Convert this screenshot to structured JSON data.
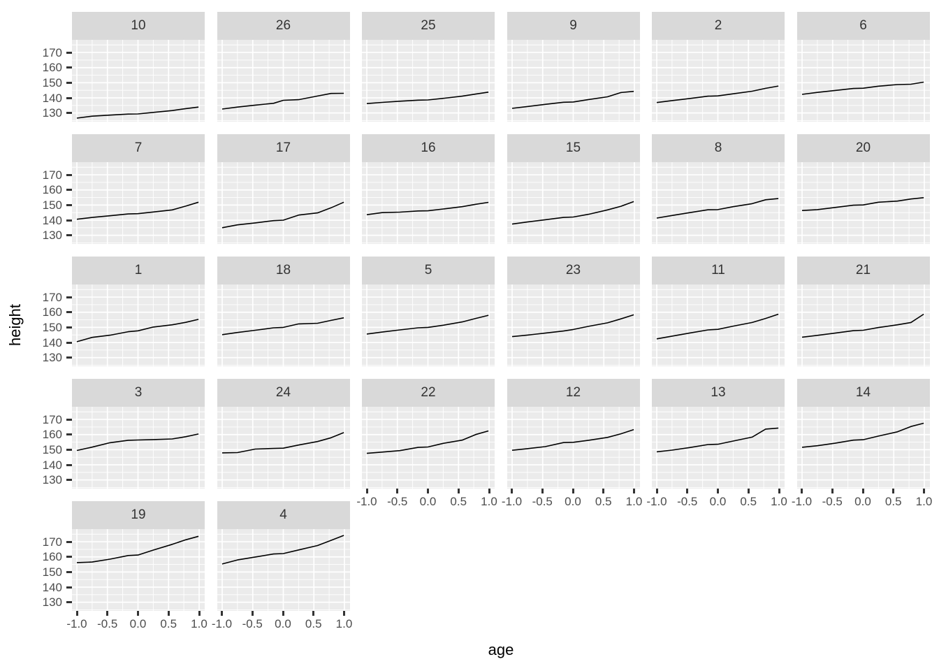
{
  "chart_data": {
    "type": "line",
    "title": "",
    "xlabel": "age",
    "ylabel": "height",
    "x_tick_labels": [
      "-1.0",
      "-0.5",
      "0.0",
      "0.5",
      "1.0"
    ],
    "x_tick_values": [
      -1.0,
      -0.5,
      0.0,
      0.5,
      1.0
    ],
    "y_tick_labels": [
      "170",
      "160",
      "150",
      "140",
      "130"
    ],
    "y_tick_values": [
      170,
      160,
      150,
      140,
      130
    ],
    "x_range": [
      -1.09,
      1.09
    ],
    "y_range": [
      124.3,
      178.35
    ],
    "grid": "on",
    "legend_position": "none",
    "x": [
      -1.0,
      -0.75,
      -0.46,
      -0.16,
      0.0,
      0.25,
      0.56,
      0.78,
      0.99
    ],
    "facets": [
      {
        "label": "10",
        "values": [
          126.6,
          127.9,
          128.6,
          129.3,
          129.4,
          130.4,
          131.6,
          132.9,
          133.9
        ]
      },
      {
        "label": "26",
        "values": [
          132.6,
          133.9,
          135.2,
          136.4,
          138.4,
          138.8,
          141.2,
          142.9,
          143.0
        ]
      },
      {
        "label": "25",
        "values": [
          136.2,
          137.0,
          137.8,
          138.5,
          138.6,
          139.7,
          141.1,
          142.5,
          143.8
        ]
      },
      {
        "label": "9",
        "values": [
          133.1,
          134.3,
          135.7,
          137.1,
          137.3,
          138.9,
          140.7,
          143.5,
          144.3
        ]
      },
      {
        "label": "2",
        "values": [
          136.9,
          138.2,
          139.6,
          141.1,
          141.3,
          142.7,
          144.4,
          146.3,
          147.8
        ]
      },
      {
        "label": "6",
        "values": [
          142.3,
          143.6,
          144.9,
          146.2,
          146.4,
          147.7,
          148.8,
          149.0,
          150.4
        ]
      },
      {
        "label": "7",
        "values": [
          140.6,
          141.8,
          142.9,
          144.1,
          144.3,
          145.4,
          146.8,
          149.3,
          151.9
        ]
      },
      {
        "label": "17",
        "values": [
          135.0,
          136.9,
          138.2,
          139.7,
          140.0,
          143.4,
          144.8,
          148.2,
          151.9
        ]
      },
      {
        "label": "16",
        "values": [
          143.6,
          145.0,
          145.3,
          146.1,
          146.2,
          147.4,
          148.9,
          150.5,
          151.8
        ]
      },
      {
        "label": "15",
        "values": [
          137.4,
          138.8,
          140.3,
          141.8,
          142.1,
          143.9,
          146.8,
          149.2,
          152.3
        ]
      },
      {
        "label": "8",
        "values": [
          141.4,
          143.1,
          145.0,
          146.9,
          147.0,
          148.9,
          150.9,
          153.5,
          154.3
        ]
      },
      {
        "label": "20",
        "values": [
          146.4,
          147.0,
          148.4,
          149.9,
          150.1,
          151.9,
          152.6,
          154.0,
          154.9
        ]
      },
      {
        "label": "1",
        "values": [
          140.5,
          143.4,
          144.8,
          147.1,
          147.7,
          150.2,
          151.7,
          153.3,
          155.3
        ]
      },
      {
        "label": "18",
        "values": [
          145.2,
          146.6,
          148.1,
          149.7,
          150.0,
          152.3,
          152.7,
          154.6,
          156.3
        ]
      },
      {
        "label": "5",
        "values": [
          145.6,
          146.9,
          148.3,
          149.7,
          150.0,
          151.4,
          153.6,
          155.9,
          158.0
        ]
      },
      {
        "label": "23",
        "values": [
          143.9,
          144.9,
          146.2,
          147.6,
          148.6,
          150.7,
          153.0,
          155.6,
          158.3
        ]
      },
      {
        "label": "11",
        "values": [
          142.4,
          144.2,
          146.3,
          148.3,
          148.7,
          150.8,
          153.2,
          155.9,
          158.7
        ]
      },
      {
        "label": "21",
        "values": [
          143.5,
          144.7,
          146.2,
          147.8,
          148.1,
          149.9,
          151.7,
          153.2,
          158.7
        ]
      },
      {
        "label": "3",
        "values": [
          149.5,
          151.7,
          154.6,
          156.2,
          156.4,
          156.7,
          157.1,
          158.6,
          160.4
        ]
      },
      {
        "label": "24",
        "values": [
          147.9,
          148.1,
          150.4,
          150.8,
          151.0,
          153.1,
          155.4,
          157.9,
          161.3
        ]
      },
      {
        "label": "22",
        "values": [
          147.6,
          148.4,
          149.4,
          151.5,
          151.8,
          154.2,
          156.3,
          160.0,
          162.4
        ]
      },
      {
        "label": "12",
        "values": [
          149.6,
          150.7,
          152.0,
          154.7,
          154.9,
          156.2,
          158.1,
          160.5,
          163.3
        ]
      },
      {
        "label": "13",
        "values": [
          148.6,
          149.7,
          151.4,
          153.4,
          153.6,
          155.7,
          158.3,
          163.6,
          164.3
        ]
      },
      {
        "label": "14",
        "values": [
          151.6,
          152.6,
          154.3,
          156.3,
          156.6,
          159.0,
          161.8,
          165.3,
          167.5
        ]
      },
      {
        "label": "19",
        "values": [
          156.2,
          156.6,
          158.5,
          160.9,
          161.2,
          164.5,
          168.3,
          171.3,
          173.6
        ]
      },
      {
        "label": "4",
        "values": [
          155.3,
          158.0,
          159.9,
          161.9,
          162.2,
          164.6,
          167.5,
          170.9,
          174.2
        ]
      }
    ],
    "colors": {
      "panel_bg": "#ebebeb",
      "strip_bg": "#d9d9d9",
      "grid": "#ffffff",
      "line": "#000000",
      "tick_label": "#4d4d4d",
      "tick_mark": "#333333",
      "strip_text": "#333333",
      "axis_title": "#000000"
    }
  }
}
